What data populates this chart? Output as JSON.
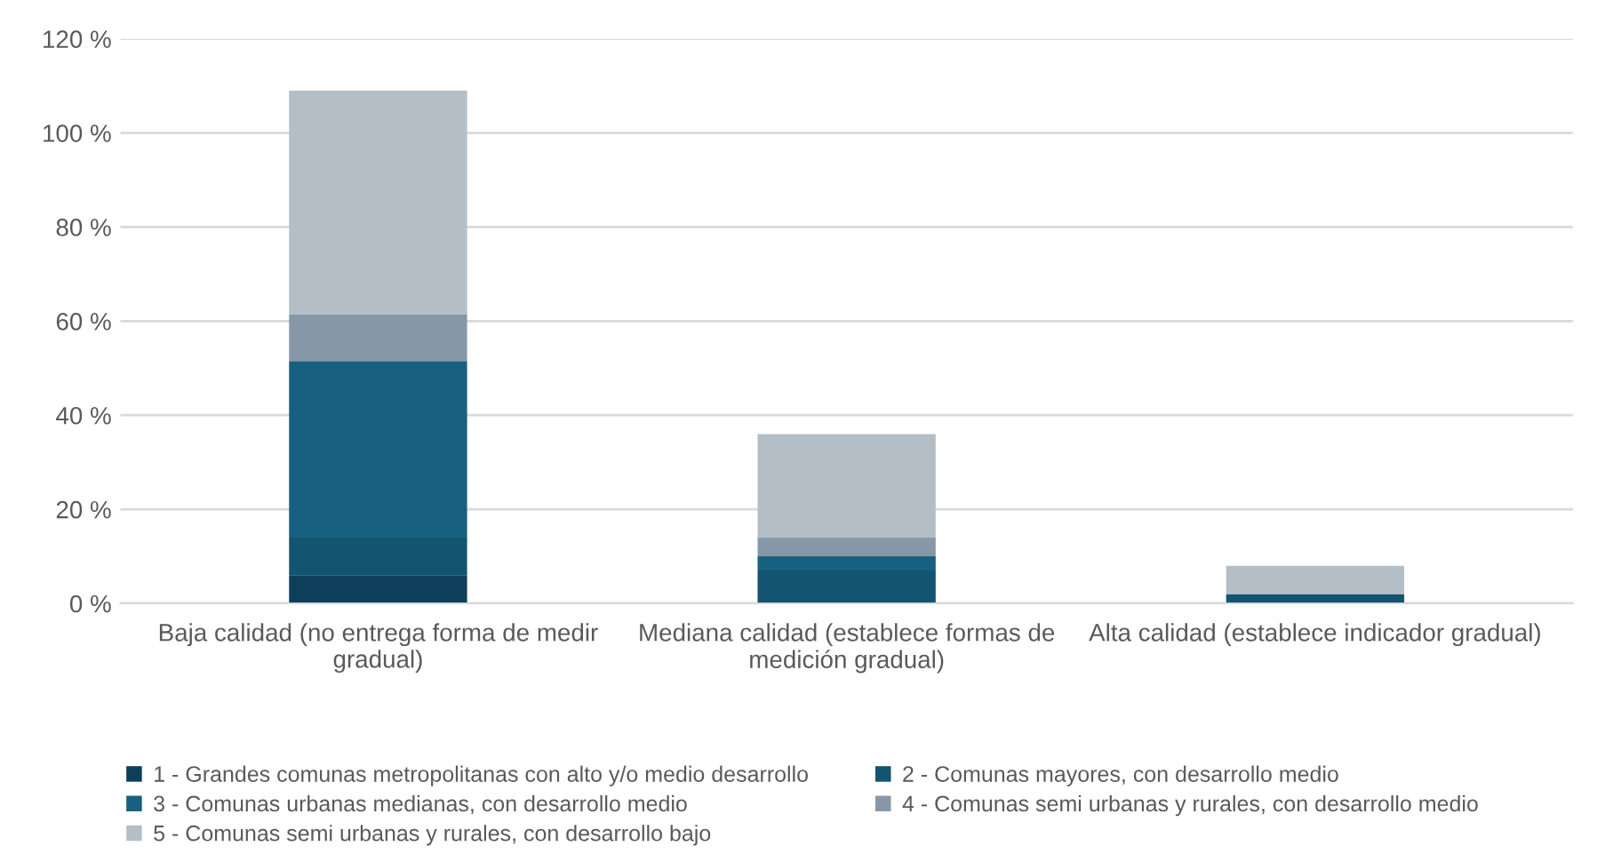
{
  "chart_data": {
    "type": "bar",
    "stacked": true,
    "categories": [
      "Baja calidad (no entrega forma de medir gradual)",
      "Mediana calidad (establece formas de medición gradual)",
      "Alta calidad (establece indicador gradual)"
    ],
    "series": [
      {
        "name": "1 - Grandes comunas metropolitanas con alto y/o medio desarrollo",
        "color": "#0e3f5a",
        "values": [
          6,
          0,
          0
        ]
      },
      {
        "name": "2 - Comunas mayores, con desarrollo medio",
        "color": "#135470",
        "values": [
          8,
          7,
          2
        ]
      },
      {
        "name": "3 - Comunas urbanas medianas, con desarrollo medio",
        "color": "#176080",
        "values": [
          37.5,
          3,
          0
        ]
      },
      {
        "name": "4 - Comunas semi urbanas y rurales, con desarrollo medio",
        "color": "#8698a8",
        "values": [
          10,
          4,
          0
        ]
      },
      {
        "name": "5 - Comunas semi urbanas y rurales, con desarrollo bajo",
        "color": "#b4bec7",
        "values": [
          47.5,
          22,
          6
        ]
      }
    ],
    "ylim": [
      0,
      120
    ],
    "yticks": [
      {
        "value": 0,
        "label": "0 %"
      },
      {
        "value": 20,
        "label": "20 %"
      },
      {
        "value": 40,
        "label": "40 %"
      },
      {
        "value": 60,
        "label": "60 %"
      },
      {
        "value": 80,
        "label": "80 %"
      },
      {
        "value": 100,
        "label": "100 %"
      },
      {
        "value": 120,
        "label": "120 %"
      }
    ],
    "grid": "y",
    "legend": "bottom"
  }
}
